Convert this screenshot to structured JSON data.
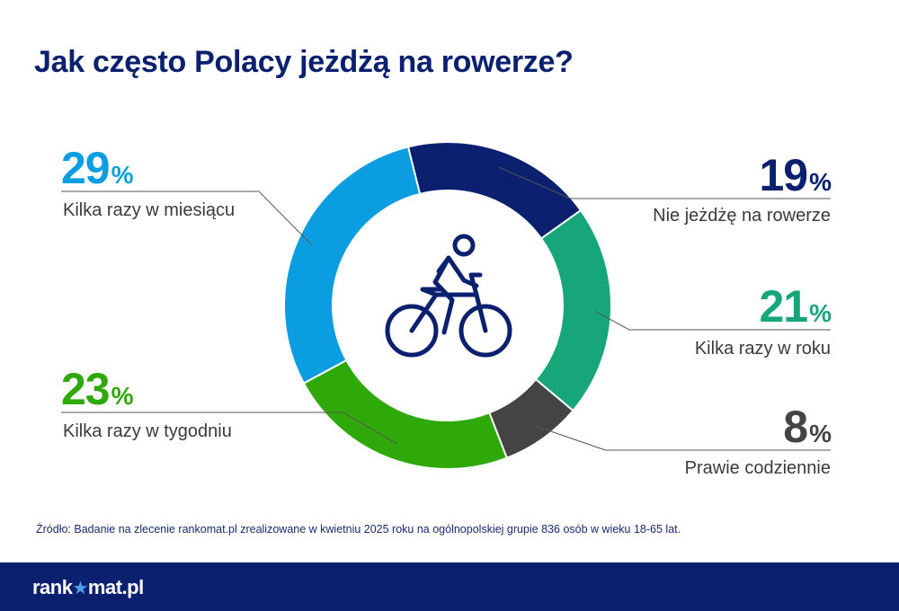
{
  "header": {
    "title": "Jak często Polacy jeżdżą na rowerze?"
  },
  "chart_data": {
    "type": "pie",
    "title": "Jak często Polacy jeżdżą na rowerze?",
    "unit": "%",
    "donut": true,
    "center_icon": "bicycle-rider-icon",
    "slices": [
      {
        "label": "Nie jeżdżę na rowerze",
        "value": 19,
        "color": "#0b2170"
      },
      {
        "label": "Kilka razy w roku",
        "value": 21,
        "color": "#17a57a"
      },
      {
        "label": "Prawie codziennie",
        "value": 8,
        "color": "#444444"
      },
      {
        "label": "Kilka razy w tygodniu",
        "value": 23,
        "color": "#2fa80a"
      },
      {
        "label": "Kilka razy w miesiącu",
        "value": 29,
        "color": "#0a9de0"
      }
    ]
  },
  "source": {
    "text": "Źródło: Badanie na zlecenie rankomat.pl zrealizowane w kwietniu 2025 roku na ogólnopolskiej grupie 836 osób w wieku 18-65 lat."
  },
  "footer": {
    "logo_left": "rank",
    "logo_right": "mat.pl",
    "logo_star": "★"
  }
}
